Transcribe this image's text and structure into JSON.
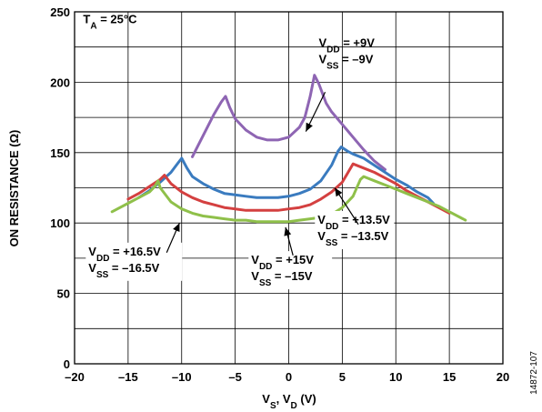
{
  "chart_data": {
    "type": "line",
    "xlabel": "VS, VD (V)",
    "xlabel_parts": [
      {
        "t": "V"
      },
      {
        "t": "S",
        "sub": true
      },
      {
        "t": ", V"
      },
      {
        "t": "D",
        "sub": true
      },
      {
        "t": " (V)"
      }
    ],
    "ylabel": "ON RESISTANCE (Ω)",
    "xlim": [
      -20,
      20
    ],
    "ylim": [
      0,
      250
    ],
    "xticks": [
      -20,
      -15,
      -10,
      -5,
      0,
      5,
      10,
      15,
      20
    ],
    "yticks": [
      0,
      50,
      100,
      150,
      200,
      250
    ],
    "xtick_labels": [
      "–20",
      "–15",
      "–10",
      "–5",
      "0",
      "5",
      "10",
      "15",
      "20"
    ],
    "ytick_labels": [
      "0",
      "50",
      "100",
      "150",
      "200",
      "250"
    ],
    "grid": true,
    "figure_code": "14872-107",
    "annotations": [
      {
        "id": "ta",
        "lines": [
          [
            {
              "t": "T"
            },
            {
              "t": "A",
              "sub": true
            },
            {
              "t": " = 25°C"
            }
          ]
        ]
      },
      {
        "id": "s9",
        "lines": [
          [
            {
              "t": "V"
            },
            {
              "t": "DD",
              "sub": true
            },
            {
              "t": " = +9V"
            }
          ],
          [
            {
              "t": "V"
            },
            {
              "t": "SS",
              "sub": true
            },
            {
              "t": " = –9V"
            }
          ]
        ]
      },
      {
        "id": "s135",
        "lines": [
          [
            {
              "t": "V"
            },
            {
              "t": "DD",
              "sub": true
            },
            {
              "t": " = +13.5V"
            }
          ],
          [
            {
              "t": "V"
            },
            {
              "t": "SS",
              "sub": true
            },
            {
              "t": " = –13.5V"
            }
          ]
        ]
      },
      {
        "id": "s165",
        "lines": [
          [
            {
              "t": "V"
            },
            {
              "t": "DD",
              "sub": true
            },
            {
              "t": " = +16.5V"
            }
          ],
          [
            {
              "t": "V"
            },
            {
              "t": "SS",
              "sub": true
            },
            {
              "t": " = –16.5V"
            }
          ]
        ]
      },
      {
        "id": "s15",
        "lines": [
          [
            {
              "t": "V"
            },
            {
              "t": "DD",
              "sub": true
            },
            {
              "t": " = +15V"
            }
          ],
          [
            {
              "t": "V"
            },
            {
              "t": "SS",
              "sub": true
            },
            {
              "t": " = –15V"
            }
          ]
        ]
      }
    ],
    "series": [
      {
        "id": "vdd9",
        "color": "#8e65b3",
        "points": [
          [
            -9,
            147
          ],
          [
            -8,
            162
          ],
          [
            -7,
            177
          ],
          [
            -6.3,
            186
          ],
          [
            -5.9,
            190
          ],
          [
            -5.5,
            182
          ],
          [
            -5,
            174
          ],
          [
            -4,
            166
          ],
          [
            -3,
            161
          ],
          [
            -2,
            159
          ],
          [
            -1,
            159
          ],
          [
            0,
            161
          ],
          [
            1,
            168
          ],
          [
            1.5,
            175
          ],
          [
            2,
            190
          ],
          [
            2.4,
            205
          ],
          [
            2.8,
            199
          ],
          [
            3.5,
            185
          ],
          [
            4,
            179
          ],
          [
            5,
            170
          ],
          [
            6,
            161
          ],
          [
            7,
            152
          ],
          [
            8,
            144
          ],
          [
            9,
            138
          ]
        ]
      },
      {
        "id": "vdd135",
        "color": "#3a7bbf",
        "points": [
          [
            -14,
            118
          ],
          [
            -13,
            123
          ],
          [
            -12,
            129
          ],
          [
            -11,
            136
          ],
          [
            -10.3,
            143
          ],
          [
            -10,
            146
          ],
          [
            -9.5,
            139
          ],
          [
            -9,
            133
          ],
          [
            -8,
            128
          ],
          [
            -7,
            124
          ],
          [
            -6,
            121
          ],
          [
            -5,
            120
          ],
          [
            -4,
            119
          ],
          [
            -3,
            118
          ],
          [
            -2,
            118
          ],
          [
            -1,
            118
          ],
          [
            0,
            119
          ],
          [
            1,
            121
          ],
          [
            2,
            124
          ],
          [
            3,
            130
          ],
          [
            4,
            141
          ],
          [
            4.6,
            151
          ],
          [
            4.9,
            154
          ],
          [
            5.5,
            151
          ],
          [
            6,
            149
          ],
          [
            7,
            146
          ],
          [
            8,
            141
          ],
          [
            9,
            136
          ],
          [
            10,
            131
          ],
          [
            11,
            127
          ],
          [
            12,
            122
          ],
          [
            13,
            118
          ],
          [
            13.5,
            114
          ]
        ]
      },
      {
        "id": "vdd15",
        "color": "#d44040",
        "points": [
          [
            -15,
            117
          ],
          [
            -14,
            121
          ],
          [
            -13,
            126
          ],
          [
            -12,
            131
          ],
          [
            -11.6,
            134
          ],
          [
            -11,
            128
          ],
          [
            -10,
            122
          ],
          [
            -9,
            118
          ],
          [
            -8,
            115
          ],
          [
            -7,
            113
          ],
          [
            -6,
            111
          ],
          [
            -5,
            110
          ],
          [
            -4,
            109
          ],
          [
            -3,
            109
          ],
          [
            -2,
            109
          ],
          [
            -1,
            109
          ],
          [
            0,
            110
          ],
          [
            1,
            111
          ],
          [
            2,
            113
          ],
          [
            3,
            117
          ],
          [
            4,
            122
          ],
          [
            5,
            129
          ],
          [
            5.7,
            138
          ],
          [
            6,
            142
          ],
          [
            7,
            139
          ],
          [
            8,
            136
          ],
          [
            9,
            132
          ],
          [
            10,
            128
          ],
          [
            11,
            123
          ],
          [
            12,
            119
          ],
          [
            13,
            115
          ],
          [
            14,
            111
          ],
          [
            15,
            107
          ]
        ]
      },
      {
        "id": "vdd165",
        "color": "#8fc04a",
        "points": [
          [
            -16.5,
            108
          ],
          [
            -15,
            114
          ],
          [
            -14,
            118
          ],
          [
            -13,
            122
          ],
          [
            -12.5,
            126
          ],
          [
            -12.2,
            130
          ],
          [
            -12,
            125
          ],
          [
            -11,
            115
          ],
          [
            -10,
            110
          ],
          [
            -9,
            107
          ],
          [
            -8,
            105
          ],
          [
            -7,
            104
          ],
          [
            -6,
            103
          ],
          [
            -5,
            102
          ],
          [
            -4,
            102
          ],
          [
            -3,
            101
          ],
          [
            -2,
            101
          ],
          [
            -1,
            101
          ],
          [
            0,
            101
          ],
          [
            1,
            102
          ],
          [
            2,
            103
          ],
          [
            3,
            104
          ],
          [
            4,
            106
          ],
          [
            5,
            111
          ],
          [
            6,
            119
          ],
          [
            6.7,
            131
          ],
          [
            7,
            133
          ],
          [
            8,
            130
          ],
          [
            9,
            127
          ],
          [
            10,
            124
          ],
          [
            11,
            121
          ],
          [
            12,
            118
          ],
          [
            13,
            115
          ],
          [
            14,
            112
          ],
          [
            15,
            108
          ],
          [
            16,
            104
          ],
          [
            16.5,
            102
          ]
        ]
      }
    ]
  }
}
